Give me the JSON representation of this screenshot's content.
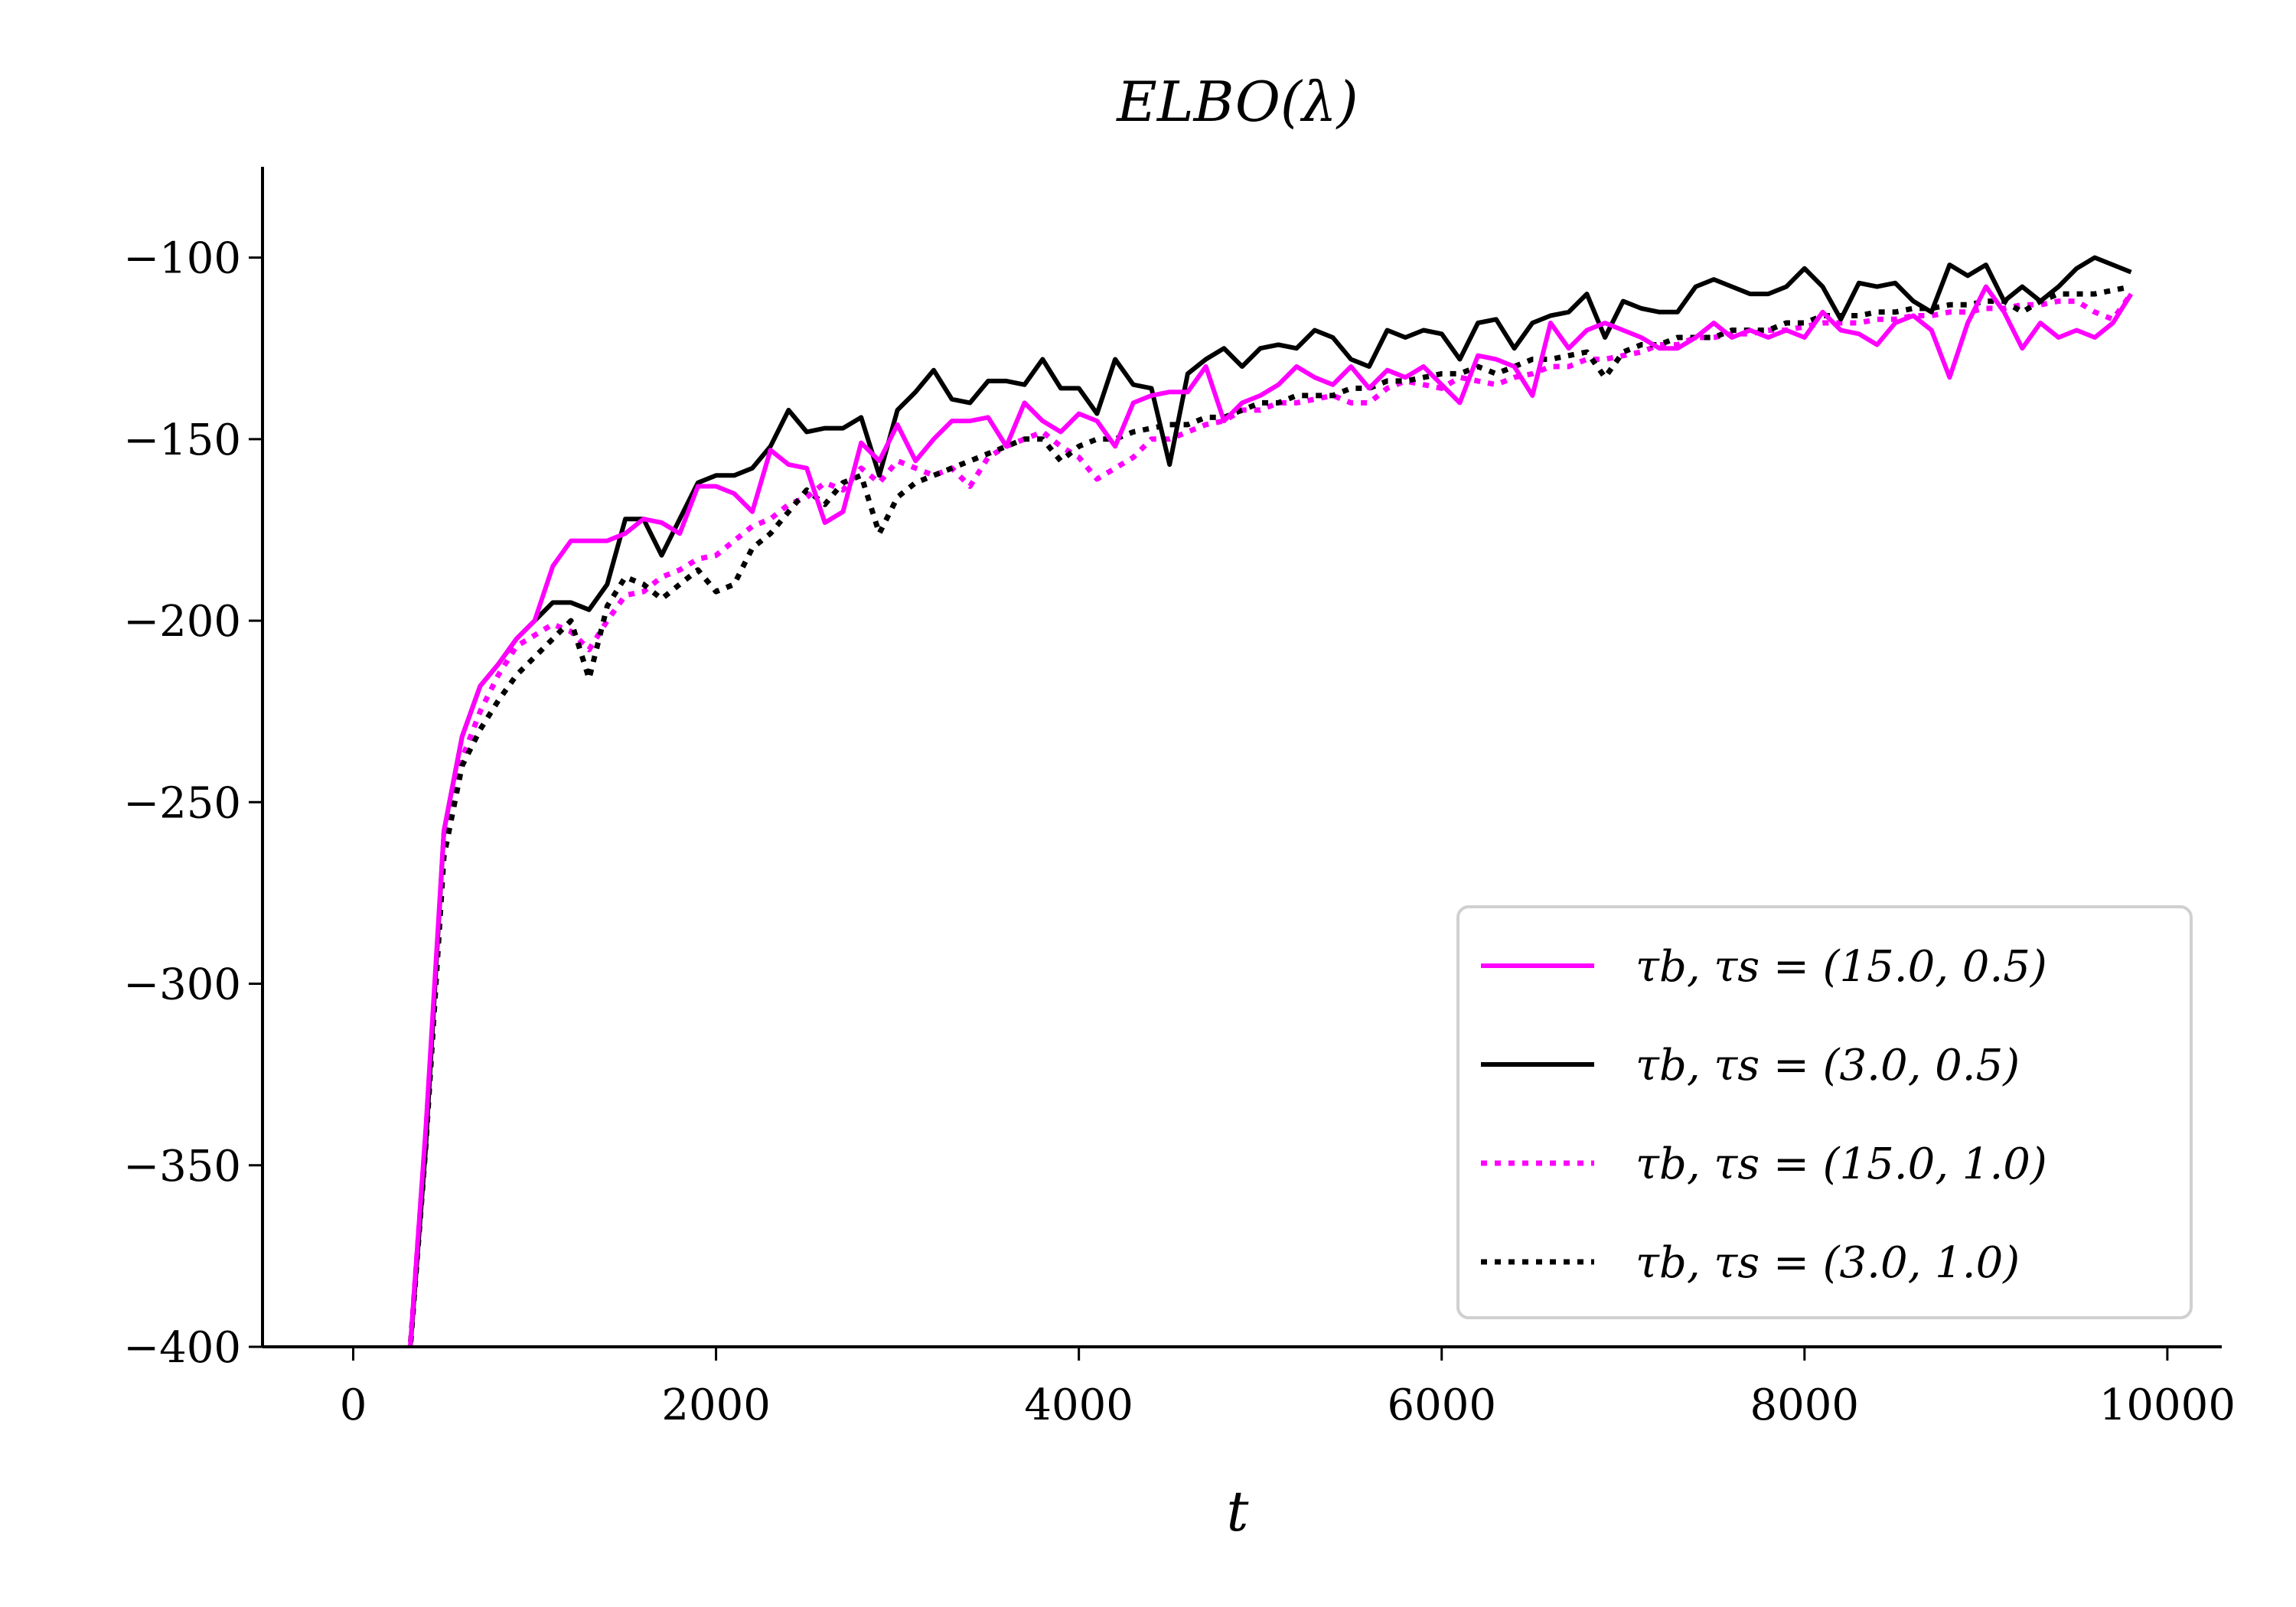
{
  "chart_data": {
    "type": "line",
    "title": "ELBO(λ)",
    "xlabel": "t",
    "ylabel": "",
    "xlim": [
      -500,
      10300
    ],
    "ylim": [
      -400,
      -75
    ],
    "xticks": [
      0,
      2000,
      4000,
      6000,
      8000,
      10000
    ],
    "xtick_labels": [
      "0",
      "2000",
      "4000",
      "6000",
      "8000",
      "10000"
    ],
    "yticks": [
      -400,
      -350,
      -300,
      -250,
      -200,
      -150,
      -100
    ],
    "ytick_labels": [
      "−400",
      "−350",
      "−300",
      "−250",
      "−200",
      "−150",
      "−100"
    ],
    "grid": false,
    "legend_position": "bottom-right",
    "x": [
      300,
      400,
      500,
      600,
      700,
      800,
      900,
      1000,
      1100,
      1200,
      1300,
      1400,
      1500,
      1600,
      1700,
      1800,
      1900,
      2000,
      2100,
      2200,
      2300,
      2400,
      2500,
      2600,
      2700,
      2800,
      2900,
      3000,
      3100,
      3200,
      3300,
      3400,
      3500,
      3600,
      3700,
      3800,
      3900,
      4000,
      4100,
      4200,
      4300,
      4400,
      4500,
      4600,
      4700,
      4800,
      4900,
      5000,
      5100,
      5200,
      5300,
      5400,
      5500,
      5600,
      5700,
      5800,
      5900,
      6000,
      6100,
      6200,
      6300,
      6400,
      6500,
      6600,
      6700,
      6800,
      6900,
      7000,
      7100,
      7200,
      7300,
      7400,
      7500,
      7600,
      7700,
      7800,
      7900,
      8000,
      8100,
      8200,
      8300,
      8400,
      8500,
      8600,
      8700,
      8800,
      8900,
      9000,
      9100,
      9200,
      9300,
      9400,
      9500,
      9600,
      9700,
      9800
    ],
    "series": [
      {
        "name": "τb, τs = (15.0, 0.5)",
        "color": "#ff00ff",
        "style": "solid",
        "values": [
          -410,
          -340,
          -258,
          -232,
          -218,
          -212,
          -205,
          -200,
          -185,
          -178,
          -178,
          -178,
          -176,
          -172,
          -173,
          -176,
          -163,
          -163,
          -165,
          -170,
          -153,
          -157,
          -158,
          -173,
          -170,
          -151,
          -156,
          -146,
          -156,
          -150,
          -145,
          -145,
          -144,
          -152,
          -140,
          -145,
          -148,
          -143,
          -145,
          -152,
          -140,
          -138,
          -137,
          -137,
          -130,
          -145,
          -140,
          -138,
          -135,
          -130,
          -133,
          -135,
          -130,
          -136,
          -131,
          -133,
          -130,
          -135,
          -140,
          -127,
          -128,
          -130,
          -138,
          -118,
          -125,
          -120,
          -118,
          -120,
          -122,
          -125,
          -125,
          -122,
          -118,
          -122,
          -120,
          -122,
          -120,
          -122,
          -115,
          -120,
          -121,
          -124,
          -118,
          -116,
          -120,
          -133,
          -118,
          -108,
          -115,
          -125,
          -118,
          -122,
          -120,
          -122,
          -118,
          -110
        ]
      },
      {
        "name": "τb, τs = (3.0, 0.5)",
        "color": "#000000",
        "style": "solid",
        "values": [
          -410,
          -345,
          -258,
          -232,
          -218,
          -212,
          -205,
          -200,
          -195,
          -195,
          -197,
          -190,
          -172,
          -172,
          -182,
          -172,
          -162,
          -160,
          -160,
          -158,
          -152,
          -142,
          -148,
          -147,
          -147,
          -144,
          -160,
          -142,
          -137,
          -131,
          -139,
          -140,
          -134,
          -134,
          -135,
          -128,
          -136,
          -136,
          -143,
          -128,
          -135,
          -136,
          -157,
          -132,
          -128,
          -125,
          -130,
          -125,
          -124,
          -125,
          -120,
          -122,
          -128,
          -130,
          -120,
          -122,
          -120,
          -121,
          -128,
          -118,
          -117,
          -125,
          -118,
          -116,
          -115,
          -110,
          -122,
          -112,
          -114,
          -115,
          -115,
          -108,
          -106,
          -108,
          -110,
          -110,
          -108,
          -103,
          -108,
          -117,
          -107,
          -108,
          -107,
          -112,
          -115,
          -102,
          -105,
          -102,
          -112,
          -108,
          -112,
          -108,
          -103,
          -100,
          -102,
          -104
        ]
      },
      {
        "name": "τb, τs = (15.0, 1.0)",
        "color": "#ff00ff",
        "style": "dotted",
        "values": [
          -410,
          -342,
          -262,
          -238,
          -225,
          -215,
          -207,
          -204,
          -201,
          -203,
          -208,
          -200,
          -193,
          -192,
          -188,
          -186,
          -183,
          -182,
          -178,
          -174,
          -172,
          -168,
          -166,
          -162,
          -164,
          -158,
          -162,
          -156,
          -158,
          -160,
          -158,
          -163,
          -155,
          -152,
          -150,
          -148,
          -152,
          -155,
          -161,
          -158,
          -155,
          -150,
          -150,
          -148,
          -146,
          -145,
          -142,
          -142,
          -140,
          -140,
          -139,
          -138,
          -140,
          -140,
          -136,
          -134,
          -135,
          -136,
          -133,
          -134,
          -135,
          -133,
          -132,
          -130,
          -130,
          -128,
          -128,
          -127,
          -126,
          -124,
          -124,
          -122,
          -122,
          -121,
          -121,
          -120,
          -120,
          -119,
          -118,
          -118,
          -118,
          -117,
          -117,
          -116,
          -116,
          -115,
          -115,
          -114,
          -114,
          -113,
          -113,
          -112,
          -112,
          -115,
          -117,
          -110
        ]
      },
      {
        "name": "τb, τs = (3.0, 1.0)",
        "color": "#000000",
        "style": "dotted",
        "values": [
          -410,
          -345,
          -265,
          -240,
          -230,
          -222,
          -215,
          -210,
          -205,
          -200,
          -216,
          -196,
          -188,
          -190,
          -194,
          -190,
          -186,
          -192,
          -190,
          -180,
          -176,
          -170,
          -164,
          -168,
          -162,
          -160,
          -176,
          -166,
          -162,
          -160,
          -158,
          -156,
          -154,
          -152,
          -150,
          -150,
          -156,
          -152,
          -150,
          -150,
          -148,
          -147,
          -146,
          -146,
          -144,
          -144,
          -142,
          -140,
          -140,
          -138,
          -138,
          -138,
          -136,
          -136,
          -134,
          -134,
          -133,
          -132,
          -132,
          -130,
          -132,
          -130,
          -128,
          -128,
          -127,
          -126,
          -133,
          -126,
          -124,
          -124,
          -122,
          -122,
          -122,
          -120,
          -120,
          -120,
          -118,
          -118,
          -116,
          -116,
          -116,
          -115,
          -115,
          -114,
          -114,
          -113,
          -113,
          -112,
          -112,
          -115,
          -112,
          -110,
          -110,
          -110,
          -109,
          -108
        ]
      }
    ]
  }
}
